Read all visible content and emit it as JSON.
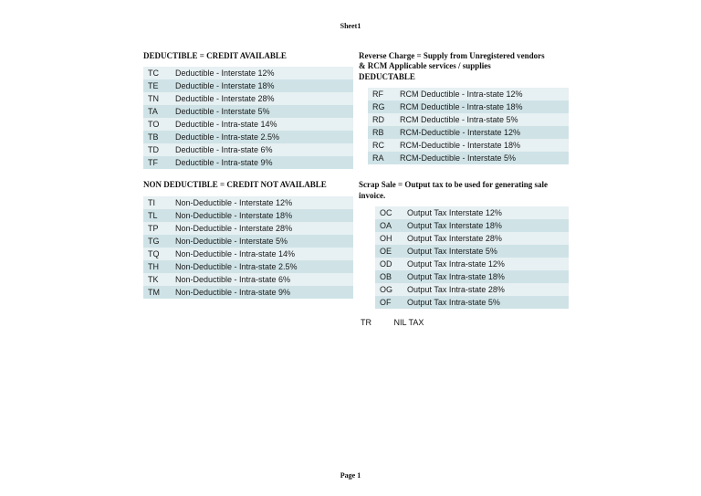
{
  "header": {
    "title": "Sheet1"
  },
  "footer": {
    "text": "Page 1"
  },
  "colors": {
    "row_odd": "#e7f0f2",
    "row_even": "#cfe3e7",
    "text": "#111111",
    "background": "#ffffff"
  },
  "sections": {
    "deductible": {
      "title": "DEDUCTIBLE = CREDIT AVAILABLE",
      "rows": [
        {
          "code": "TC",
          "desc": "Deductible - Interstate 12%"
        },
        {
          "code": "TE",
          "desc": "Deductible - Interstate 18%"
        },
        {
          "code": "TN",
          "desc": "Deductible - Interstate 28%"
        },
        {
          "code": "TA",
          "desc": "Deductible - Interstate 5%"
        },
        {
          "code": "TO",
          "desc": "Deductible - Intra-state 14%"
        },
        {
          "code": "TB",
          "desc": "Deductible - Intra-state 2.5%"
        },
        {
          "code": "TD",
          "desc": "Deductible - Intra-state 6%"
        },
        {
          "code": "TF",
          "desc": "Deductible - Intra-state 9%"
        }
      ]
    },
    "non_deductible": {
      "title": "NON DEDUCTIBLE = CREDIT NOT AVAILABLE",
      "rows": [
        {
          "code": "TI",
          "desc": "Non-Deductible - Interstate 12%"
        },
        {
          "code": "TL",
          "desc": "Non-Deductible - Interstate 18%"
        },
        {
          "code": "TP",
          "desc": "Non-Deductible - Interstate 28%"
        },
        {
          "code": "TG",
          "desc": "Non-Deductible - Interstate 5%"
        },
        {
          "code": "TQ",
          "desc": "Non-Deductible - Intra-state 14%"
        },
        {
          "code": "TH",
          "desc": "Non-Deductible - Intra-state 2.5%"
        },
        {
          "code": "TK",
          "desc": "Non-Deductible - Intra-state 6%"
        },
        {
          "code": "TM",
          "desc": "Non-Deductible - Intra-state 9%"
        }
      ]
    },
    "reverse_charge": {
      "title_line1": "Reverse Charge = Supply from Unregistered vendors & RCM Applicable services / supplies",
      "title_line2": "DEDUCTABLE",
      "rows": [
        {
          "code": "RF",
          "desc": "RCM Deductible - Intra-state 12%"
        },
        {
          "code": "RG",
          "desc": "RCM Deductible - Intra-state 18%"
        },
        {
          "code": "RD",
          "desc": "RCM Deductible - Intra-state 5%"
        },
        {
          "code": "RB",
          "desc": "RCM-Deductible - Interstate 12%"
        },
        {
          "code": "RC",
          "desc": "RCM-Deductible - Interstate 18%"
        },
        {
          "code": "RA",
          "desc": "RCM-Deductible - Interstate 5%"
        }
      ]
    },
    "scrap_sale": {
      "title": "Scrap Sale = Output tax to be used for generating sale invoice.",
      "rows": [
        {
          "code": "OC",
          "desc": "Output Tax  Interstate 12%"
        },
        {
          "code": "OA",
          "desc": "Output Tax  Interstate 18%"
        },
        {
          "code": "OH",
          "desc": "Output Tax  Interstate 28%"
        },
        {
          "code": "OE",
          "desc": "Output Tax  Interstate 5%"
        },
        {
          "code": "OD",
          "desc": "Output Tax  Intra-state 12%"
        },
        {
          "code": "OB",
          "desc": "Output Tax  Intra-state 18%"
        },
        {
          "code": "OG",
          "desc": "Output Tax  Intra-state 28%"
        },
        {
          "code": "OF",
          "desc": "Output Tax  Intra-state 5%"
        }
      ],
      "nil": {
        "code": "TR",
        "desc": "NIL TAX"
      }
    }
  }
}
